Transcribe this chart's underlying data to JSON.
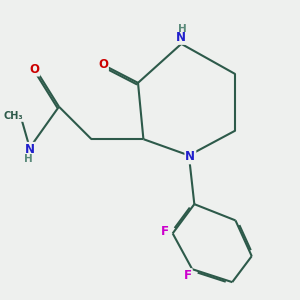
{
  "background_color": "#eef0ee",
  "bond_color": "#2d5a4a",
  "bond_width": 1.5,
  "atom_colors": {
    "N": "#2020cc",
    "O": "#cc0000",
    "F": "#cc00cc",
    "H": "#5a8a7a"
  },
  "font_size": 8.5
}
